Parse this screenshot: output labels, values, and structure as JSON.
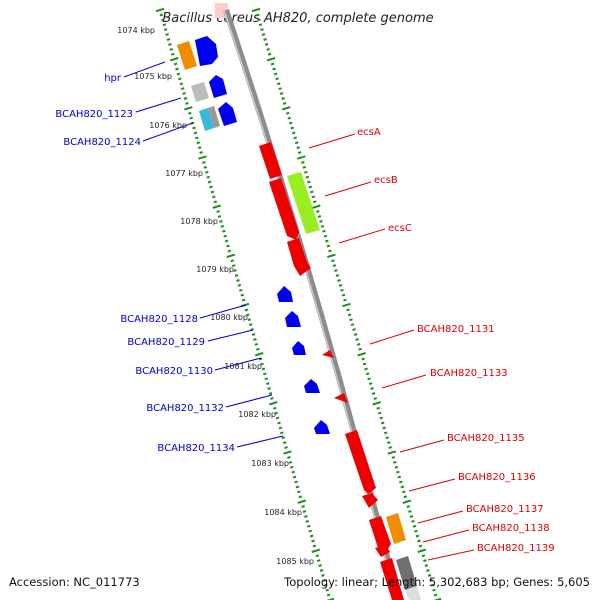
{
  "title": "Bacillus cereus AH820, complete genome",
  "footer": {
    "accession": "Accession: NC_011773",
    "topology": "Topology: linear; Length: 5,302,683 bp; Genes: 5,605"
  },
  "colors": {
    "backbone": "#8c8c8c",
    "tick": "#1e8c1e",
    "left_label": "#0000cc",
    "right_label": "#dd0000"
  },
  "kbp_labels": [
    "1074 kbp",
    "1075 kbp",
    "1076 kbp",
    "1077 kbp",
    "1078 kbp",
    "1079 kbp",
    "1080 kbp",
    "1081 kbp",
    "1082 kbp",
    "1083 kbp",
    "1084 kbp",
    "1085 kbp"
  ],
  "left_labels": [
    "hpr",
    "BCAH820_1123",
    "BCAH820_1124",
    "BCAH820_1128",
    "BCAH820_1129",
    "BCAH820_1130",
    "BCAH820_1132",
    "BCAH820_1134"
  ],
  "right_labels": [
    "ecsA",
    "ecsB",
    "ecsC",
    "BCAH820_1131",
    "BCAH820_1133",
    "BCAH820_1135",
    "BCAH820_1136",
    "BCAH820_1137",
    "BCAH820_1138",
    "BCAH820_1139"
  ],
  "feature_colors": {
    "red": "#ee0000",
    "blue": "#0000ee",
    "orange": "#f08c00",
    "gray": "#bbbbbb",
    "dark_gray": "#707070",
    "green": "#99ee22",
    "cyan": "#33bbdd",
    "pink": "#ffcccc"
  }
}
